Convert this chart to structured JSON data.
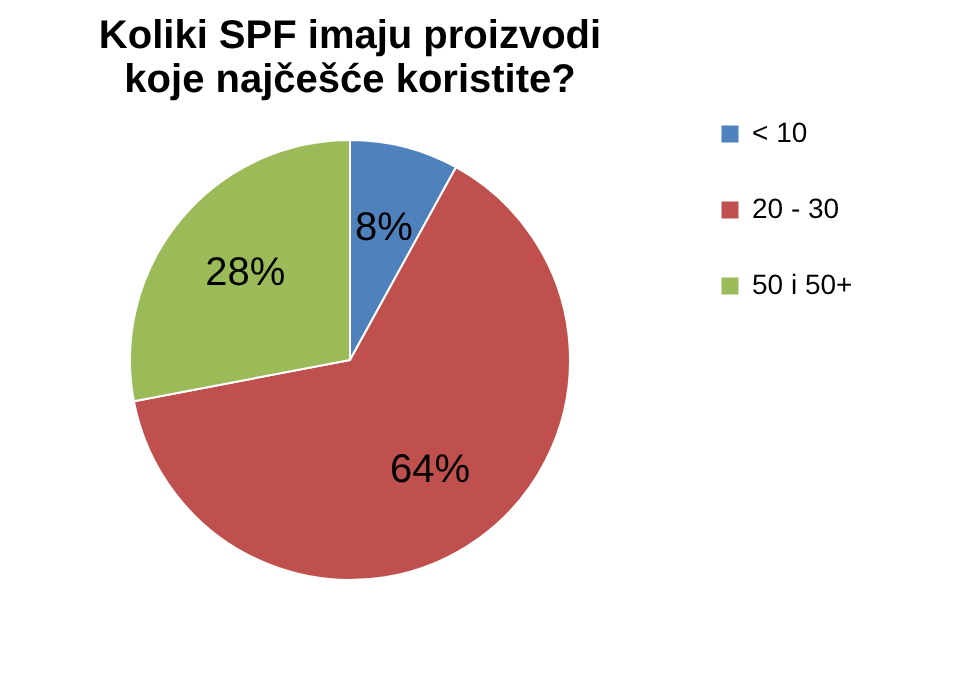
{
  "chart_data": {
    "type": "pie",
    "title": "Koliki SPF imaju proizvodi koje najčešće koristite?",
    "categories": [
      "< 10",
      "20 - 30",
      "50 i 50+"
    ],
    "values": [
      8,
      64,
      28
    ],
    "colors": [
      "#4f81bd",
      "#c0504d",
      "#9bbb59"
    ],
    "value_labels": [
      "8%",
      "64%",
      "28%"
    ],
    "legend": "right"
  }
}
